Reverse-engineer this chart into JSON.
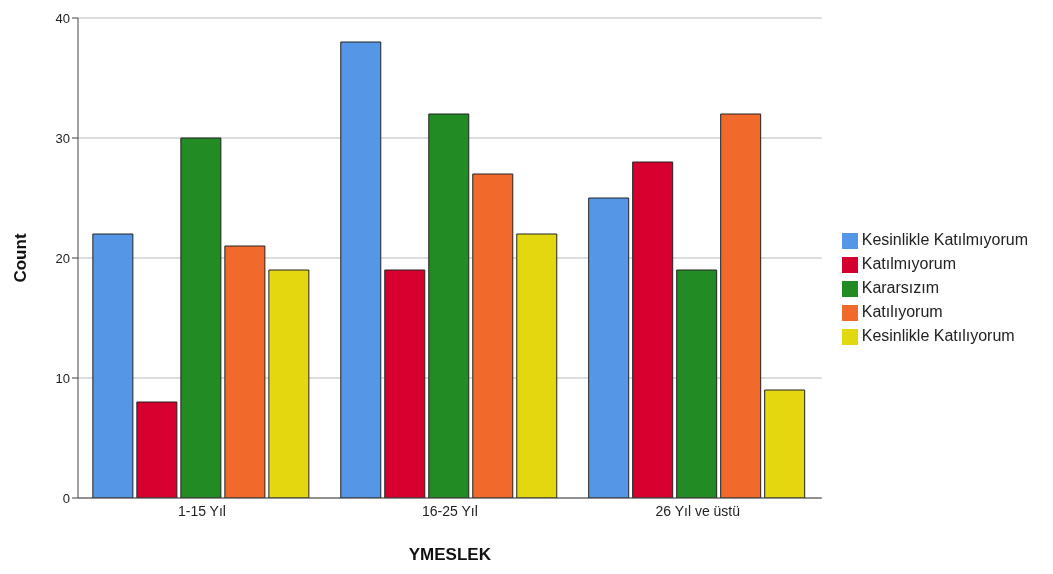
{
  "chart_data": {
    "type": "bar",
    "xlabel": "YMESLEK",
    "ylabel": "Count",
    "categories": [
      "1-15 Yıl",
      "16-25 Yıl",
      "26 Yıl ve üstü"
    ],
    "series": [
      {
        "name": "Kesinlikle Katılmıyorum",
        "color": "#5597e6",
        "values": [
          22,
          38,
          25
        ]
      },
      {
        "name": "Katılmıyorum",
        "color": "#d6002f",
        "values": [
          8,
          19,
          28
        ]
      },
      {
        "name": "Kararsızım",
        "color": "#238b23",
        "values": [
          30,
          32,
          19
        ]
      },
      {
        "name": "Katılıyorum",
        "color": "#f26a2b",
        "values": [
          21,
          27,
          32
        ]
      },
      {
        "name": "Kesinlikle Katılıyorum",
        "color": "#e3d80f",
        "values": [
          19,
          22,
          9
        ]
      }
    ],
    "ylim": [
      0,
      40
    ],
    "yticks": [
      0,
      10,
      20,
      30,
      40
    ],
    "grid": "y",
    "legend": "right"
  }
}
